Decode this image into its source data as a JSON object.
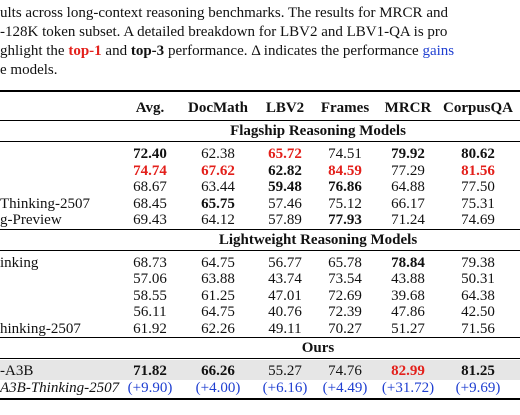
{
  "paragraph": {
    "line1": "ults across long-context reasoning benchmarks.  The results for MRCR and",
    "line2": "-128K token subset.  A detailed breakdown for LBV2 and LBV1-QA is pro",
    "line3": [
      "ghlight the ",
      "top-1",
      " and ",
      "top-3",
      " performance.  Δ indicates the performance ",
      "gains"
    ],
    "line4": "e models."
  },
  "table": {
    "columns": [
      "Avg.",
      "DocMath",
      "LBV2",
      "Frames",
      "MRCR",
      "CorpusQA"
    ],
    "sections": [
      {
        "title": "Flagship Reasoning Models",
        "rows": [
          {
            "cells": [
              "72.40",
              "62.38",
              "65.72",
              "74.51",
              "79.92",
              "80.62"
            ]
          },
          {
            "cells": [
              "74.74",
              "67.62",
              "62.82",
              "84.59",
              "77.29",
              "81.56"
            ]
          },
          {
            "cells": [
              "68.67",
              "63.44",
              "59.48",
              "76.86",
              "64.88",
              "77.50"
            ]
          },
          {
            "name": "Thinking-2507",
            "cells": [
              "68.45",
              "65.75",
              "57.46",
              "75.12",
              "66.17",
              "75.31"
            ]
          },
          {
            "name": "g-Preview",
            "cells": [
              "69.43",
              "64.12",
              "57.89",
              "77.93",
              "71.24",
              "74.69"
            ]
          }
        ]
      },
      {
        "title": "Lightweight Reasoning Models",
        "rows": [
          {
            "name": "inking",
            "cells": [
              "68.73",
              "64.75",
              "56.77",
              "65.78",
              "78.84",
              "79.38"
            ]
          },
          {
            "cells": [
              "57.06",
              "63.88",
              "43.74",
              "73.54",
              "43.88",
              "50.31"
            ]
          },
          {
            "cells": [
              "58.55",
              "61.25",
              "47.01",
              "72.69",
              "39.68",
              "64.38"
            ]
          },
          {
            "cells": [
              "56.11",
              "64.75",
              "40.76",
              "72.39",
              "47.86",
              "42.50"
            ]
          },
          {
            "name": "hinking-2507",
            "cells": [
              "61.92",
              "62.26",
              "49.11",
              "70.27",
              "51.27",
              "71.56"
            ]
          }
        ]
      },
      {
        "title": "Ours",
        "rows": [
          {
            "name": "-A3B",
            "cells": [
              "71.82",
              "66.26",
              "55.27",
              "74.76",
              "82.99",
              "81.25"
            ]
          },
          {
            "name": "A3B-Thinking-2507",
            "cells": [
              "(+9.90)",
              "(+4.00)",
              "(+6.16)",
              "(+4.49)",
              "(+31.72)",
              "(+9.69)"
            ]
          }
        ]
      }
    ]
  }
}
